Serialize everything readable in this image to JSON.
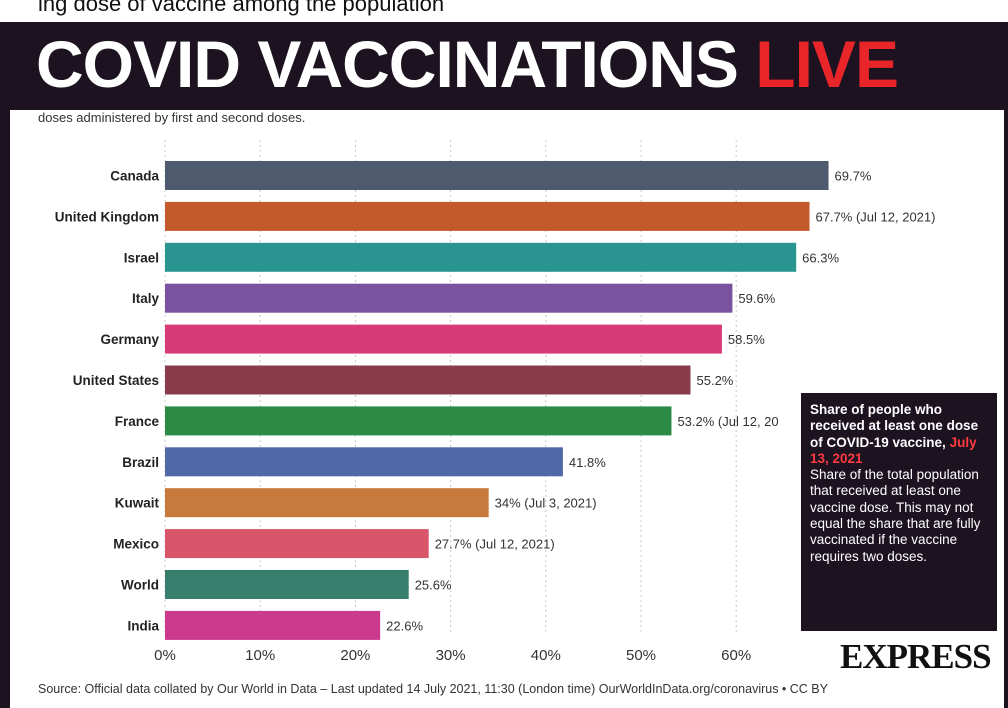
{
  "header": {
    "strip_text": "ing dose of vaccine among the population",
    "title_main": "COVID VACCINATIONS",
    "title_live": "LIVE"
  },
  "subtitle": "doses administered by first and second doses.",
  "chart_data": {
    "type": "bar",
    "orientation": "horizontal",
    "categories": [
      "Canada",
      "United Kingdom",
      "Israel",
      "Italy",
      "Germany",
      "United States",
      "France",
      "Brazil",
      "Kuwait",
      "Mexico",
      "World",
      "India"
    ],
    "values": [
      69.7,
      67.7,
      66.3,
      59.6,
      58.5,
      55.2,
      53.2,
      41.8,
      34,
      27.7,
      25.6,
      22.6
    ],
    "value_labels": [
      "69.7%",
      "67.7% (Jul 12, 2021)",
      "66.3%",
      "59.6%",
      "58.5%",
      "55.2%",
      "53.2% (Jul 12, 20",
      "41.8%",
      "34% (Jul 3, 2021)",
      "27.7% (Jul 12, 2021)",
      "25.6%",
      "22.6%"
    ],
    "bar_colors": [
      "#4e5a6e",
      "#c25a2c",
      "#2a9590",
      "#7a52a0",
      "#d93a78",
      "#8a3b4c",
      "#2a8a46",
      "#5168a6",
      "#c87a3c",
      "#d9556a",
      "#377e6c",
      "#cc3a8e"
    ],
    "xlim": [
      0,
      70
    ],
    "xticks": [
      "0%",
      "10%",
      "20%",
      "30%",
      "40%",
      "50%",
      "60%"
    ],
    "xtick_values": [
      0,
      10,
      20,
      30,
      40,
      50,
      60
    ],
    "grid": "vertical dashed"
  },
  "note": {
    "head": "Share of people who received at least one dose of COVID-19 vaccine,",
    "date": "July 13, 2021",
    "body": "Share of the total population that received at least one vaccine dose. This may not equal the share that are fully vaccinated if the vaccine requires two doses."
  },
  "brand": "EXPRESS",
  "source": "Source: Official data collated by Our World in Data – Last updated 14 July 2021, 11:30 (London time) OurWorldInData.org/coronavirus • CC BY"
}
